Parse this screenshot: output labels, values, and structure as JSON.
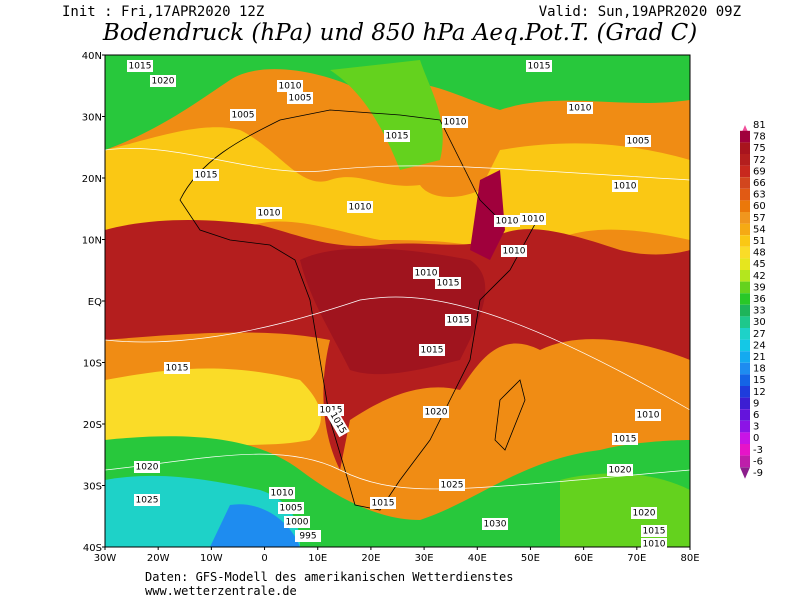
{
  "header": {
    "init": "Init : Fri,17APR2020 12Z",
    "valid": "Valid: Sun,19APR2020 09Z",
    "title": "Bodendruck (hPa) und 850 hPa Aeq.Pot.T. (Grad C)"
  },
  "map": {
    "lat_labels": [
      "40N",
      "30N",
      "20N",
      "10N",
      "EQ",
      "10S",
      "20S",
      "30S",
      "40S"
    ],
    "lon_labels": [
      "30W",
      "20W",
      "10W",
      "0",
      "10E",
      "20E",
      "30E",
      "40E",
      "50E",
      "60E",
      "70E",
      "80E"
    ],
    "isobar_labels": [
      "1015",
      "1020",
      "1010",
      "1005",
      "1005",
      "1015",
      "1010",
      "1015",
      "1010",
      "1005",
      "1015",
      "1010",
      "1010",
      "1010",
      "1010",
      "1010",
      "1010",
      "1010",
      "1015",
      "1015",
      "1015",
      "1015",
      "1015",
      "1020",
      "1010",
      "1015",
      "1020",
      "1020",
      "1025",
      "1025",
      "1010",
      "1005",
      "1000",
      "995",
      "1015",
      "1030",
      "1020",
      "1015",
      "1010",
      "1015"
    ]
  },
  "colorbar": {
    "ticks": [
      81,
      78,
      75,
      72,
      69,
      66,
      63,
      60,
      57,
      54,
      51,
      48,
      45,
      42,
      39,
      36,
      33,
      30,
      27,
      24,
      21,
      18,
      15,
      12,
      9,
      6,
      3,
      0,
      -3,
      -6,
      -9
    ],
    "colors": [
      "#f0509b",
      "#a0003c",
      "#a8141e",
      "#b41e1e",
      "#c8281e",
      "#d2461e",
      "#e15a14",
      "#eb780a",
      "#f0961e",
      "#f5aa14",
      "#fac814",
      "#fadc28",
      "#e6e61e",
      "#b4e61e",
      "#64d21e",
      "#28c828",
      "#1eb45a",
      "#1ec88c",
      "#1ed2c8",
      "#14c8e6",
      "#14aaf0",
      "#1e8cf0",
      "#1464e6",
      "#1e3cdc",
      "#3c1ed2",
      "#6414dc",
      "#8c14e6",
      "#c814e6",
      "#e614c8",
      "#be1eaa",
      "#8c1e8c"
    ]
  },
  "footer": {
    "line1": "Daten: GFS-Modell des amerikanischen Wetterdienstes",
    "line2": "www.wetterzentrale.de"
  }
}
